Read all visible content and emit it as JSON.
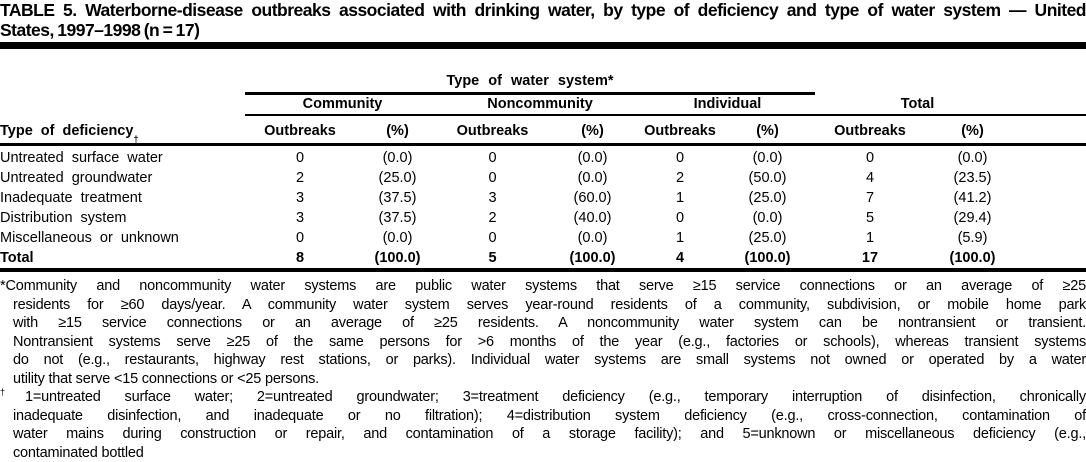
{
  "title": {
    "lines": [
      "TABLE 5. Waterborne-disease outbreaks associated with drinking water, by type of deficiency and type of water system — United",
      "States, 1997–1998 (n = 17)"
    ]
  },
  "table": {
    "span_header": "Type of water system*",
    "row_header": {
      "label": "Type of deficiency",
      "marker": "†"
    },
    "groups": [
      "Community",
      "Noncommunity",
      "Individual",
      "Total"
    ],
    "col_headers": {
      "outbreaks": "Outbreaks",
      "pct": "(%)"
    },
    "rows": [
      {
        "label": "Untreated surface water",
        "cells": [
          "0",
          "(0.0)",
          "0",
          "(0.0)",
          "0",
          "(0.0)",
          "0",
          "(0.0)"
        ]
      },
      {
        "label": "Untreated groundwater",
        "cells": [
          "2",
          "(25.0)",
          "0",
          "(0.0)",
          "2",
          "(50.0)",
          "4",
          "(23.5)"
        ]
      },
      {
        "label": "Inadequate treatment",
        "cells": [
          "3",
          "(37.5)",
          "3",
          "(60.0)",
          "1",
          "(25.0)",
          "7",
          "(41.2)"
        ]
      },
      {
        "label": "Distribution system",
        "cells": [
          "3",
          "(37.5)",
          "2",
          "(40.0)",
          "0",
          "(0.0)",
          "5",
          "(29.4)"
        ]
      },
      {
        "label": "Miscellaneous or unknown",
        "cells": [
          "0",
          "(0.0)",
          "0",
          "(0.0)",
          "1",
          "(25.0)",
          "1",
          "(5.9)"
        ]
      },
      {
        "label": "Total",
        "cells": [
          "8",
          "(100.0)",
          "5",
          "(100.0)",
          "4",
          "(100.0)",
          "17",
          "(100.0)"
        ]
      }
    ]
  },
  "footnotes": [
    {
      "marker": "*",
      "lines": [
        "Community and noncommunity water systems are public water systems that serve ≥15 service connections or an average of ≥25",
        "residents for ≥60 days/year. A community water system serves year-round residents of a community, subdivision, or mobile home park",
        "with ≥15 service connections or an average of ≥25 residents. A noncommunity water system can be nontransient or transient.",
        "Nontransient systems serve ≥25 of the same persons for >6 months of the year (e.g., factories or schools), whereas transient systems",
        "do not (e.g., restaurants, highway rest stations, or parks). Individual water systems are small systems not owned or operated by a water",
        "utility that serve <15 connections or <25 persons."
      ]
    },
    {
      "marker": "†",
      "lines": [
        "1=untreated surface water; 2=untreated groundwater; 3=treatment deficiency (e.g., temporary interruption of disinfection, chronically",
        "inadequate disinfection, and inadequate or no filtration); 4=distribution system deficiency (e.g., cross-connection, contamination of",
        "water mains during construction or repair, and contamination of a storage facility); and 5=unknown or miscellaneous deficiency (e.g.,",
        "contaminated bottled"
      ]
    }
  ]
}
